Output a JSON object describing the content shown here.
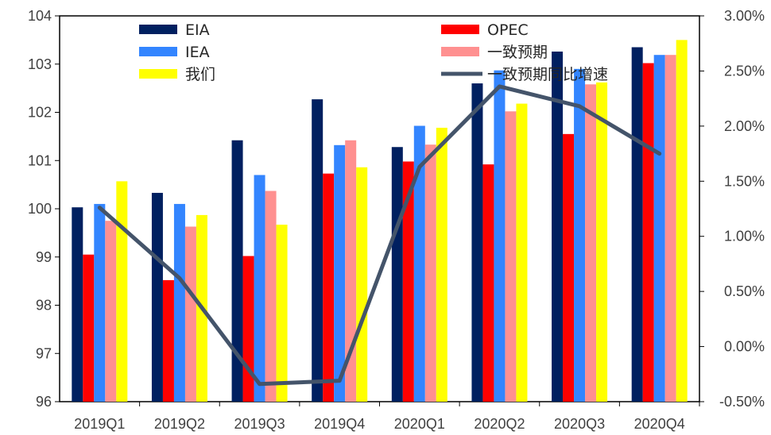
{
  "chart_data": {
    "type": "bar",
    "categories": [
      "2019Q1",
      "2019Q2",
      "2019Q3",
      "2019Q4",
      "2020Q1",
      "2020Q2",
      "2020Q3",
      "2020Q4"
    ],
    "series": [
      {
        "name": "EIA",
        "type": "bar",
        "axis": "left",
        "color": "#002060",
        "values": [
          100.03,
          100.33,
          101.42,
          102.27,
          101.28,
          102.6,
          103.26,
          103.35
        ]
      },
      {
        "name": "OPEC",
        "type": "bar",
        "axis": "left",
        "color": "#ff0000",
        "values": [
          99.05,
          98.52,
          99.02,
          100.73,
          100.98,
          100.92,
          101.55,
          103.02
        ]
      },
      {
        "name": "IEA",
        "type": "bar",
        "axis": "left",
        "color": "#3385ff",
        "values": [
          100.1,
          100.1,
          100.7,
          101.32,
          101.72,
          102.87,
          102.9,
          103.19
        ]
      },
      {
        "name": "一致预期",
        "type": "bar",
        "axis": "left",
        "color": "#ff9090",
        "values": [
          99.75,
          99.63,
          100.37,
          101.42,
          101.33,
          102.02,
          102.58,
          103.19
        ]
      },
      {
        "name": "我们",
        "type": "bar",
        "axis": "left",
        "color": "#ffff00",
        "values": [
          100.57,
          99.87,
          99.67,
          100.86,
          101.68,
          102.18,
          102.62,
          103.5
        ]
      },
      {
        "name": "一致预期同比增速",
        "type": "line",
        "axis": "right",
        "color": "#44546a",
        "values": [
          1.26,
          0.62,
          -0.34,
          -0.31,
          1.63,
          2.36,
          2.18,
          1.75
        ]
      }
    ],
    "y_left": {
      "min": 96,
      "max": 104,
      "ticks": [
        "96",
        "97",
        "98",
        "99",
        "100",
        "101",
        "102",
        "103",
        "104"
      ]
    },
    "y_right": {
      "min": -0.5,
      "max": 3.0,
      "ticks": [
        "-0.50%",
        "0.00%",
        "0.50%",
        "1.00%",
        "1.50%",
        "2.00%",
        "2.50%",
        "3.00%"
      ]
    },
    "grid": false,
    "legend_position": "top"
  }
}
